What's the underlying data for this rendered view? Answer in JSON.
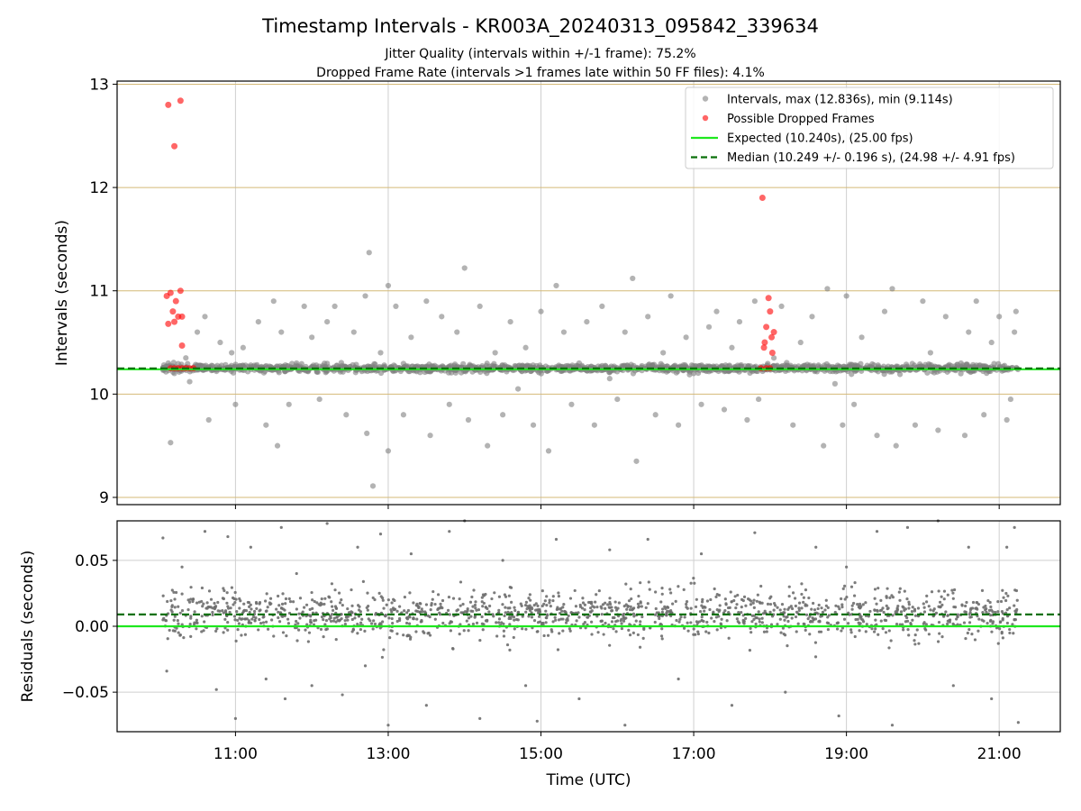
{
  "figure": {
    "title": "Timestamp Intervals - KR003A_20240313_095842_339634",
    "subtitle_1": "Jitter Quality (intervals within +/-1 frame): 75.2%",
    "subtitle_2": "Dropped Frame Rate (intervals >1 frames late within 50 FF files): 4.1%"
  },
  "chart_data": [
    {
      "type": "scatter",
      "ylabel": "Intervals (seconds)",
      "xlim_hours": [
        9.45,
        21.8
      ],
      "ylim": [
        8.93,
        13.03
      ],
      "y_ticks": [
        9,
        10,
        11,
        12,
        13
      ],
      "y_tick_labels": [
        "9",
        "10",
        "11",
        "12",
        "13"
      ],
      "grid": true,
      "legend_position": "top-right",
      "expected_y": 10.24,
      "median_y": 10.249,
      "legend": [
        {
          "label": "Intervals, max (12.836s), min (9.114s)",
          "kind": "marker",
          "color": "#808080"
        },
        {
          "label": "Possible Dropped Frames",
          "kind": "marker",
          "color": "#ff0000"
        },
        {
          "label": "Expected (10.240s), (25.00 fps)",
          "kind": "line",
          "color": "#1ee81e"
        },
        {
          "label": "Median (10.249 +/- 0.196 s), (24.98 +/- 4.91 fps)",
          "kind": "dashed",
          "color": "#0a700a"
        }
      ],
      "series": [
        {
          "name": "Intervals, max (12.836s), min (9.114s)",
          "color": "#808080",
          "points": [
            [
              10.05,
              10.24
            ],
            [
              10.12,
              10.3
            ],
            [
              10.15,
              9.53
            ],
            [
              10.2,
              10.2
            ],
            [
              10.35,
              10.35
            ],
            [
              10.4,
              10.12
            ],
            [
              10.5,
              10.6
            ],
            [
              10.6,
              10.75
            ],
            [
              10.65,
              9.75
            ],
            [
              10.8,
              10.5
            ],
            [
              10.95,
              10.4
            ],
            [
              11.0,
              9.9
            ],
            [
              11.1,
              10.45
            ],
            [
              11.3,
              10.7
            ],
            [
              11.4,
              9.7
            ],
            [
              11.5,
              10.9
            ],
            [
              11.55,
              9.5
            ],
            [
              11.6,
              10.6
            ],
            [
              11.7,
              9.9
            ],
            [
              11.8,
              10.3
            ],
            [
              11.9,
              10.85
            ],
            [
              12.0,
              10.55
            ],
            [
              12.1,
              9.95
            ],
            [
              12.2,
              10.7
            ],
            [
              12.3,
              10.85
            ],
            [
              12.45,
              9.8
            ],
            [
              12.55,
              10.6
            ],
            [
              12.7,
              10.95
            ],
            [
              12.72,
              9.62
            ],
            [
              12.75,
              11.37
            ],
            [
              12.8,
              9.11
            ],
            [
              12.9,
              10.4
            ],
            [
              13.0,
              9.45
            ],
            [
              13.0,
              11.05
            ],
            [
              13.1,
              10.85
            ],
            [
              13.2,
              9.8
            ],
            [
              13.3,
              10.55
            ],
            [
              13.5,
              10.9
            ],
            [
              13.55,
              9.6
            ],
            [
              13.7,
              10.75
            ],
            [
              13.8,
              9.9
            ],
            [
              13.9,
              10.6
            ],
            [
              14.0,
              11.22
            ],
            [
              14.05,
              9.75
            ],
            [
              14.2,
              10.85
            ],
            [
              14.3,
              9.5
            ],
            [
              14.4,
              10.4
            ],
            [
              14.5,
              9.8
            ],
            [
              14.6,
              10.7
            ],
            [
              14.7,
              10.05
            ],
            [
              14.8,
              10.45
            ],
            [
              14.9,
              9.7
            ],
            [
              15.0,
              10.8
            ],
            [
              15.1,
              9.45
            ],
            [
              15.2,
              11.05
            ],
            [
              15.3,
              10.6
            ],
            [
              15.4,
              9.9
            ],
            [
              15.5,
              10.3
            ],
            [
              15.6,
              10.7
            ],
            [
              15.7,
              9.7
            ],
            [
              15.8,
              10.85
            ],
            [
              15.9,
              10.15
            ],
            [
              16.0,
              9.95
            ],
            [
              16.1,
              10.6
            ],
            [
              16.2,
              11.12
            ],
            [
              16.25,
              9.35
            ],
            [
              16.4,
              10.75
            ],
            [
              16.5,
              9.8
            ],
            [
              16.6,
              10.4
            ],
            [
              16.7,
              10.95
            ],
            [
              16.8,
              9.7
            ],
            [
              16.9,
              10.55
            ],
            [
              17.0,
              10.2
            ],
            [
              17.1,
              9.9
            ],
            [
              17.2,
              10.65
            ],
            [
              17.3,
              10.8
            ],
            [
              17.4,
              9.85
            ],
            [
              17.5,
              10.45
            ],
            [
              17.6,
              10.7
            ],
            [
              17.7,
              9.75
            ],
            [
              17.8,
              10.9
            ],
            [
              17.85,
              9.95
            ],
            [
              18.05,
              10.35
            ],
            [
              18.15,
              10.85
            ],
            [
              18.3,
              9.7
            ],
            [
              18.4,
              10.5
            ],
            [
              18.55,
              10.75
            ],
            [
              18.7,
              9.5
            ],
            [
              18.75,
              11.02
            ],
            [
              18.85,
              10.1
            ],
            [
              18.95,
              9.7
            ],
            [
              19.0,
              10.95
            ],
            [
              19.1,
              9.9
            ],
            [
              19.2,
              10.55
            ],
            [
              19.4,
              9.6
            ],
            [
              19.5,
              10.8
            ],
            [
              19.6,
              11.02
            ],
            [
              19.65,
              9.5
            ],
            [
              19.8,
              10.25
            ],
            [
              19.9,
              9.7
            ],
            [
              20.0,
              10.9
            ],
            [
              20.1,
              10.4
            ],
            [
              20.2,
              9.65
            ],
            [
              20.3,
              10.75
            ],
            [
              20.5,
              10.3
            ],
            [
              20.55,
              9.6
            ],
            [
              20.6,
              10.6
            ],
            [
              20.7,
              10.9
            ],
            [
              20.8,
              9.8
            ],
            [
              20.9,
              10.5
            ],
            [
              21.0,
              10.75
            ],
            [
              21.1,
              9.75
            ],
            [
              21.2,
              10.6
            ],
            [
              21.22,
              10.8
            ],
            [
              21.15,
              9.95
            ]
          ]
        },
        {
          "name": "Possible Dropped Frames",
          "color": "#ff0000",
          "points": [
            [
              10.12,
              12.8
            ],
            [
              10.2,
              12.4
            ],
            [
              10.28,
              12.84
            ],
            [
              10.1,
              10.95
            ],
            [
              10.15,
              10.98
            ],
            [
              10.2,
              10.7
            ],
            [
              10.25,
              10.75
            ],
            [
              10.28,
              11.0
            ],
            [
              10.3,
              10.47
            ],
            [
              10.12,
              10.68
            ],
            [
              10.18,
              10.8
            ],
            [
              10.22,
              10.9
            ],
            [
              10.3,
              10.75
            ],
            [
              10.15,
              10.25
            ],
            [
              10.2,
              10.25
            ],
            [
              10.25,
              10.25
            ],
            [
              10.3,
              10.25
            ],
            [
              10.35,
              10.25
            ],
            [
              10.4,
              10.25
            ],
            [
              10.45,
              10.25
            ],
            [
              17.9,
              11.9
            ],
            [
              17.92,
              10.45
            ],
            [
              17.95,
              10.65
            ],
            [
              17.98,
              10.93
            ],
            [
              18.0,
              10.8
            ],
            [
              18.02,
              10.55
            ],
            [
              18.05,
              10.6
            ],
            [
              17.88,
              10.25
            ],
            [
              17.95,
              10.25
            ],
            [
              18.0,
              10.25
            ],
            [
              17.93,
              10.5
            ],
            [
              18.03,
              10.4
            ]
          ]
        }
      ]
    },
    {
      "type": "scatter",
      "xlabel": "Time (UTC)",
      "ylabel": "Residuals (seconds)",
      "xlim_hours": [
        9.45,
        21.8
      ],
      "ylim": [
        -0.08,
        0.08
      ],
      "y_ticks": [
        -0.05,
        0.0,
        0.05
      ],
      "y_tick_labels": [
        "−0.05",
        "0.00",
        "0.05"
      ],
      "x_ticks_hours": [
        11,
        13,
        15,
        17,
        19,
        21
      ],
      "x_tick_labels": [
        "11:00",
        "13:00",
        "15:00",
        "17:00",
        "19:00",
        "21:00"
      ],
      "grid": true,
      "expected_y": 0.0,
      "median_y": 0.009,
      "series": [
        {
          "name": "",
          "color": "#6e6e6e",
          "points": [
            [
              10.05,
              0.067
            ],
            [
              10.1,
              -0.034
            ],
            [
              10.3,
              0.045
            ],
            [
              10.6,
              0.072
            ],
            [
              10.75,
              -0.048
            ],
            [
              10.9,
              0.068
            ],
            [
              11.0,
              -0.07
            ],
            [
              11.2,
              0.06
            ],
            [
              11.4,
              -0.04
            ],
            [
              11.6,
              0.075
            ],
            [
              11.65,
              -0.055
            ],
            [
              11.8,
              0.04
            ],
            [
              12.0,
              -0.045
            ],
            [
              12.2,
              0.078
            ],
            [
              12.4,
              -0.052
            ],
            [
              12.6,
              0.06
            ],
            [
              12.7,
              -0.03
            ],
            [
              12.9,
              0.07
            ],
            [
              13.0,
              -0.075
            ],
            [
              13.3,
              0.055
            ],
            [
              13.5,
              -0.06
            ],
            [
              13.8,
              0.072
            ],
            [
              14.0,
              0.08
            ],
            [
              14.2,
              -0.07
            ],
            [
              14.5,
              0.05
            ],
            [
              14.8,
              -0.045
            ],
            [
              14.95,
              -0.072
            ],
            [
              15.2,
              0.066
            ],
            [
              15.5,
              -0.055
            ],
            [
              15.9,
              0.058
            ],
            [
              16.1,
              -0.075
            ],
            [
              16.4,
              0.066
            ],
            [
              16.8,
              -0.04
            ],
            [
              17.1,
              0.055
            ],
            [
              17.5,
              -0.06
            ],
            [
              17.8,
              0.071
            ],
            [
              18.2,
              -0.05
            ],
            [
              18.6,
              0.06
            ],
            [
              18.9,
              -0.068
            ],
            [
              19.0,
              0.045
            ],
            [
              19.4,
              0.072
            ],
            [
              19.6,
              -0.075
            ],
            [
              19.8,
              0.075
            ],
            [
              20.2,
              0.08
            ],
            [
              20.4,
              -0.045
            ],
            [
              20.6,
              0.06
            ],
            [
              20.9,
              -0.055
            ],
            [
              21.2,
              0.075
            ],
            [
              21.25,
              -0.073
            ],
            [
              21.1,
              0.06
            ]
          ]
        }
      ]
    }
  ]
}
